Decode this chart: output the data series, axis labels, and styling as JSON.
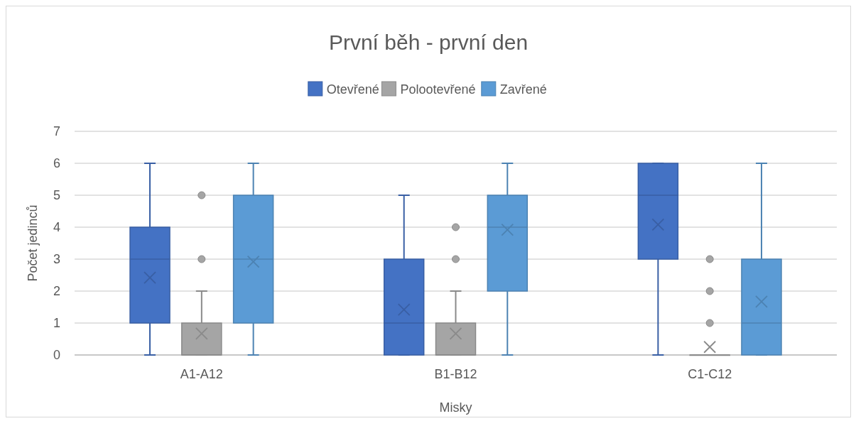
{
  "chart_data": {
    "type": "box",
    "title": "První běh - první den",
    "xlabel": "Misky",
    "ylabel": "Počet jedinců",
    "categories": [
      "A1-A12",
      "B1-B12",
      "C1-C12"
    ],
    "ylim": [
      0,
      7
    ],
    "yticks": [
      0,
      1,
      2,
      3,
      4,
      5,
      6,
      7
    ],
    "grid": "y",
    "legend": "top",
    "series": [
      {
        "name": "Otevřené",
        "color": "#4472c4",
        "boxes": [
          {
            "low": 0,
            "q1": 1,
            "median": 3,
            "q3": 4,
            "high": 6,
            "mean": 2.42
          },
          {
            "low": 0,
            "q1": 0,
            "median": 1,
            "q3": 3,
            "high": 5,
            "mean": 1.42
          },
          {
            "low": 0,
            "q1": 3,
            "median": 5,
            "q3": 6,
            "high": 6,
            "mean": 4.08
          }
        ]
      },
      {
        "name": "Polootevřené",
        "color": "#a5a5a5",
        "boxes": [
          {
            "low": 0,
            "q1": 0,
            "median": 0,
            "q3": 1,
            "high": 2,
            "mean": 0.67,
            "outliers": [
              3,
              5
            ]
          },
          {
            "low": 0,
            "q1": 0,
            "median": 0,
            "q3": 1,
            "high": 2,
            "mean": 0.67,
            "outliers": [
              3,
              4
            ]
          },
          {
            "low": 0,
            "q1": 0,
            "median": 0,
            "q3": 0,
            "high": 0,
            "mean": 0.25,
            "outliers": [
              1,
              2,
              3
            ]
          }
        ]
      },
      {
        "name": "Zavřené",
        "color": "#5b9bd5",
        "boxes": [
          {
            "low": 0,
            "q1": 1,
            "median": 3,
            "q3": 5,
            "high": 6,
            "mean": 2.92
          },
          {
            "low": 0,
            "q1": 2,
            "median": 4,
            "q3": 5,
            "high": 6,
            "mean": 3.92
          },
          {
            "low": 0,
            "q1": 0,
            "median": 1,
            "q3": 3,
            "high": 6,
            "mean": 1.67
          }
        ]
      }
    ]
  }
}
